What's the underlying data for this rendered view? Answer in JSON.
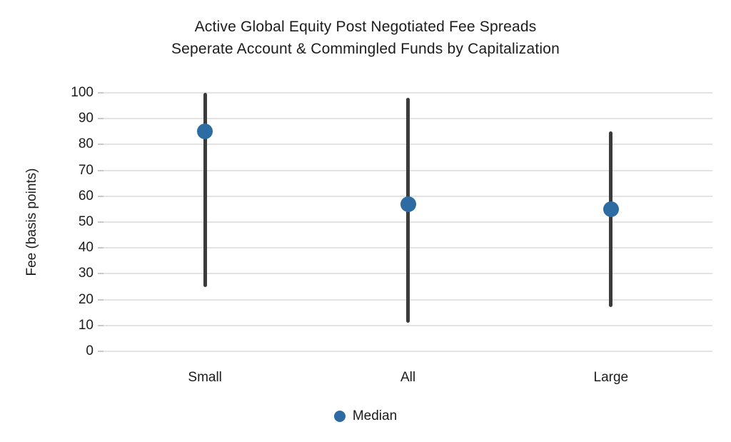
{
  "page": {
    "background": "#ffffff"
  },
  "chart_data": {
    "type": "bar",
    "variant": "vertical-range-bars-with-median-dots",
    "title_line1": "Active Global Equity Post Negotiated Fee Spreads",
    "title_line2": "Seperate Account & Commingled Funds by Capitalization",
    "ylabel": "Fee (basis points)",
    "xlabel": "",
    "ylim": [
      0,
      100
    ],
    "yticks": [
      0,
      10,
      20,
      30,
      40,
      50,
      60,
      70,
      80,
      90,
      100
    ],
    "grid": true,
    "legend_position": "bottom-center",
    "legend_label": "Median",
    "categories": [
      "Small",
      "All",
      "Large"
    ],
    "series": [
      {
        "name": "Fee spread range",
        "type": "range",
        "min": [
          25,
          11,
          17
        ],
        "max": [
          100,
          98,
          85
        ]
      },
      {
        "name": "Median",
        "type": "point",
        "values": [
          85,
          57,
          55
        ]
      }
    ],
    "colors": {
      "range_bar": "#3b3b3b",
      "median_dot": "#2d6ca3",
      "gridline": "#e3e3e3",
      "tick": "#c9c9c9",
      "text": "#1c1c1c"
    }
  }
}
